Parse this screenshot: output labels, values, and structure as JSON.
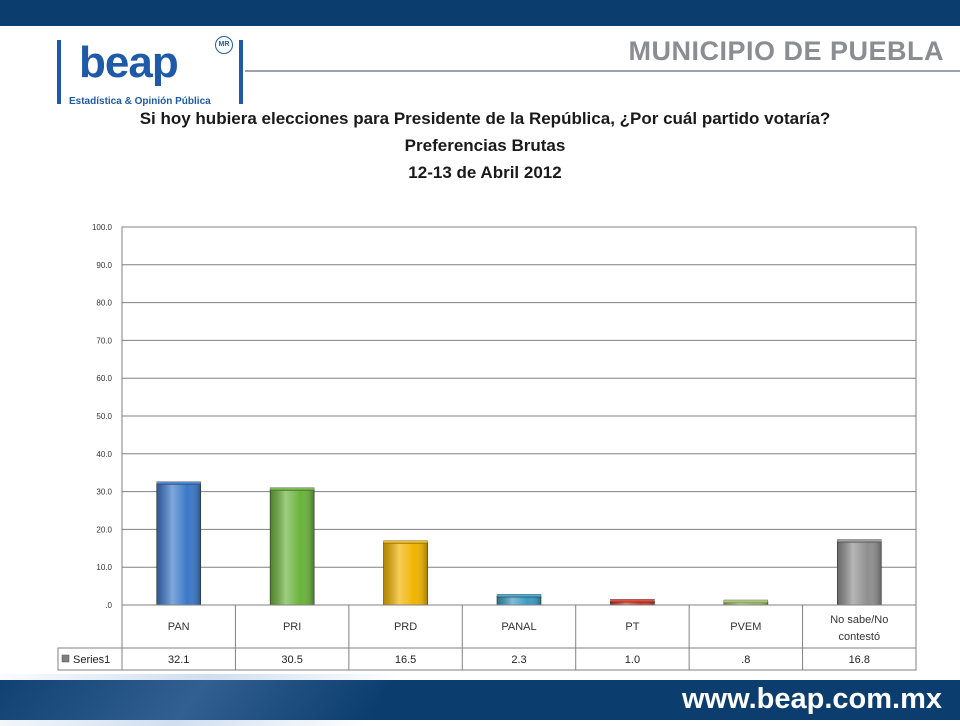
{
  "header": {
    "brand": "beap",
    "brand_mark": "MR",
    "brand_tagline": "Estadística & Opinión Pública",
    "region": "MUNICIPIO DE PUEBLA"
  },
  "footer": {
    "url": "www.beap.com.mx"
  },
  "chart_data": {
    "type": "bar",
    "title": "Si hoy hubiera elecciones para Presidente de la República, ¿Por cuál partido votaría?",
    "subtitle": [
      "Preferencias Brutas",
      "12-13 de Abril 2012"
    ],
    "categories": [
      "PAN",
      "PRI",
      "PRD",
      "PANAL",
      "PT",
      "PVEM",
      "No sabe/No contestó"
    ],
    "series": [
      {
        "name": "Series1",
        "values": [
          32.1,
          30.5,
          16.5,
          2.3,
          1.0,
          0.8,
          16.8
        ],
        "labels": [
          "32.1",
          "30.5",
          "16.5",
          "2.3",
          "1.0",
          ".8",
          "16.8"
        ]
      }
    ],
    "bar_colors": [
      "#3a78c8",
      "#6ab23a",
      "#f0b400",
      "#3a9ac2",
      "#d43a2a",
      "#a8c86a",
      "#8e8e8e"
    ],
    "ylim": [
      0,
      100
    ],
    "yticks": [
      ".0",
      "10.0",
      "20.0",
      "30.0",
      "40.0",
      "50.0",
      "60.0",
      "70.0",
      "80.0",
      "90.0",
      "100.0"
    ],
    "grid": true,
    "legend": "data-table"
  }
}
